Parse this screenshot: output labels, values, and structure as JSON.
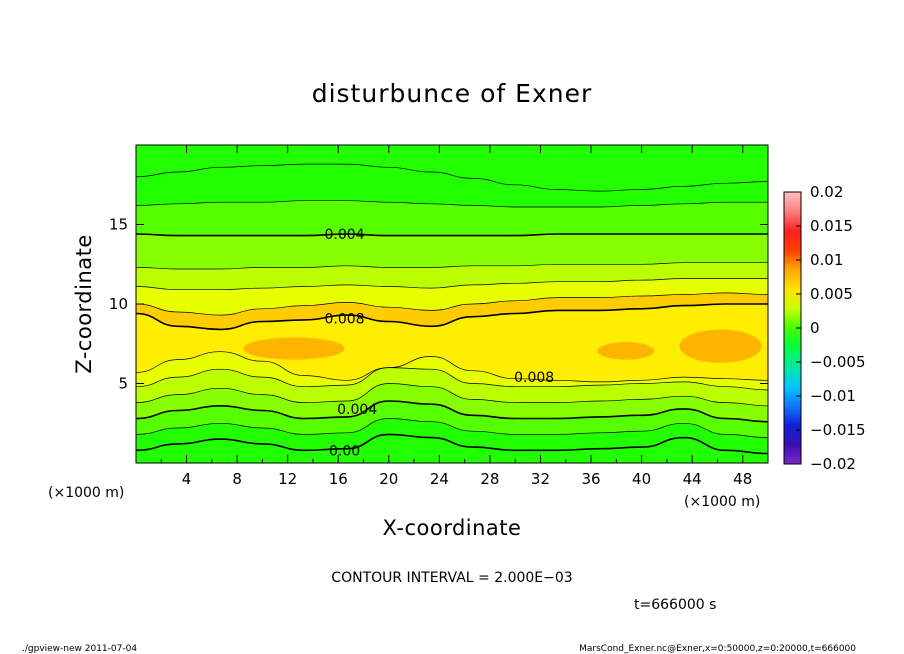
{
  "chart_data": {
    "type": "heatmap",
    "title": "disturbunce of Exner",
    "xlabel": "X-coordinate",
    "ylabel": "Z-coordinate",
    "x_units": "(×1000 m)",
    "y_units": "(×1000 m)",
    "xlim": [
      0,
      50
    ],
    "ylim": [
      0,
      20
    ],
    "x_ticks": [
      4,
      8,
      12,
      16,
      20,
      24,
      28,
      32,
      36,
      40,
      44,
      48
    ],
    "y_ticks": [
      5,
      10,
      15
    ],
    "colorbar": {
      "ticks": [
        "0.02",
        "0.015",
        "0.01",
        "0.005",
        "0",
        "−0.005",
        "−0.01",
        "−0.015",
        "−0.02"
      ],
      "range": [
        -0.02,
        0.02
      ]
    },
    "contour_interval_text": "CONTOUR INTERVAL = 2.000E−03",
    "contour_labels": [
      {
        "text": "0.004",
        "x": 16.5,
        "z": 14.4
      },
      {
        "text": "0.008",
        "x": 16.5,
        "z": 9.1
      },
      {
        "text": "0.008",
        "x": 31.5,
        "z": 5.4
      },
      {
        "text": "0.004",
        "x": 17.5,
        "z": 3.4
      },
      {
        "text": "0.00",
        "x": 16.5,
        "z": 0.8
      }
    ],
    "band_profiles": [
      {
        "value": 0.002,
        "z": [
          0.8,
          1.2,
          1.5,
          1.2,
          0.8,
          0.9,
          1.8,
          1.6,
          1.0,
          0.8,
          0.8,
          0.9,
          1.0,
          1.6,
          0.8,
          0.6
        ]
      },
      {
        "value": 0.003,
        "z": [
          1.8,
          2.2,
          2.5,
          2.2,
          1.8,
          1.9,
          2.8,
          2.6,
          2.0,
          1.8,
          1.8,
          1.9,
          2.0,
          2.5,
          1.8,
          1.6
        ]
      },
      {
        "value": 0.004,
        "z": [
          2.8,
          3.3,
          3.6,
          3.3,
          2.8,
          2.9,
          3.9,
          3.7,
          3.0,
          2.8,
          2.8,
          2.9,
          3.0,
          3.4,
          2.8,
          2.6
        ]
      },
      {
        "value": 0.005,
        "z": [
          3.8,
          4.3,
          4.7,
          4.3,
          3.8,
          3.9,
          5.0,
          4.8,
          4.0,
          3.8,
          3.8,
          3.9,
          4.0,
          4.2,
          3.8,
          3.6
        ]
      },
      {
        "value": 0.006,
        "z": [
          4.8,
          5.4,
          5.9,
          5.4,
          4.8,
          4.9,
          6.0,
          5.9,
          5.0,
          4.8,
          4.8,
          4.9,
          5.0,
          5.1,
          4.8,
          4.6
        ]
      },
      {
        "value": 0.007,
        "z": [
          5.7,
          6.5,
          7.0,
          6.4,
          5.5,
          5.2,
          6.0,
          6.7,
          5.8,
          5.3,
          5.2,
          5.1,
          5.2,
          5.4,
          5.3,
          5.2
        ]
      },
      {
        "value": 0.0085,
        "z": [
          9.4,
          8.6,
          8.4,
          8.9,
          9.0,
          9.3,
          8.9,
          8.6,
          9.2,
          9.4,
          9.6,
          9.6,
          9.7,
          9.9,
          10.0,
          10.0
        ]
      },
      {
        "value": 0.007,
        "z": [
          10.0,
          9.5,
          9.3,
          9.7,
          9.9,
          10.1,
          9.8,
          9.6,
          10.0,
          10.2,
          10.4,
          10.4,
          10.5,
          10.6,
          10.7,
          10.6
        ]
      },
      {
        "value": 0.006,
        "z": [
          11.1,
          10.9,
          10.9,
          11.0,
          11.1,
          11.2,
          11.1,
          11.0,
          11.2,
          11.3,
          11.4,
          11.4,
          11.5,
          11.6,
          11.6,
          11.6
        ]
      },
      {
        "value": 0.005,
        "z": [
          12.3,
          12.2,
          12.2,
          12.3,
          12.3,
          12.4,
          12.3,
          12.3,
          12.4,
          12.4,
          12.5,
          12.5,
          12.5,
          12.6,
          12.6,
          12.6
        ]
      },
      {
        "value": 0.004,
        "z": [
          14.4,
          14.3,
          14.3,
          14.3,
          14.3,
          14.4,
          14.3,
          14.3,
          14.3,
          14.3,
          14.4,
          14.4,
          14.4,
          14.4,
          14.4,
          14.4
        ]
      },
      {
        "value": 0.003,
        "z": [
          16.2,
          16.3,
          16.4,
          16.4,
          16.5,
          16.5,
          16.4,
          16.3,
          16.2,
          16.1,
          16.1,
          16.1,
          16.2,
          16.3,
          16.4,
          16.4
        ]
      },
      {
        "value": 0.002,
        "z": [
          18.0,
          18.3,
          18.6,
          18.7,
          18.8,
          18.8,
          18.6,
          18.3,
          17.9,
          17.5,
          17.2,
          17.1,
          17.2,
          17.4,
          17.6,
          17.7
        ]
      }
    ],
    "highlight_regions": [
      {
        "value": 0.009,
        "x": [
          8.5,
          16.5
        ],
        "z": [
          6.5,
          7.9
        ]
      },
      {
        "value": 0.009,
        "x": [
          36.5,
          41.0
        ],
        "z": [
          6.5,
          7.6
        ]
      },
      {
        "value": 0.009,
        "x": [
          43.0,
          49.5
        ],
        "z": [
          6.3,
          8.4
        ]
      }
    ]
  },
  "footer": {
    "time": "t=666000 s",
    "program": "./gpview-new   2011-07-04",
    "source": "MarsCond_Exner.nc@Exner,x=0:50000,z=0:20000,t=666000"
  },
  "colors": {
    "c_0_002": "#22ff00",
    "c_0_003": "#55ff00",
    "c_0_004": "#88ff00",
    "c_0_005": "#bbff00",
    "c_0_006": "#e8ff00",
    "c_0_007": "#ffee00",
    "c_0_008": "#ffcc00",
    "c_0_009": "#ffb400",
    "colorbar_stops": [
      "#7a28c8",
      "#3a10b0",
      "#1020d8",
      "#1078ff",
      "#00c8ff",
      "#00e8a0",
      "#00ff40",
      "#44ff00",
      "#c8ff00",
      "#ffe000",
      "#ffa800",
      "#ff4000",
      "#ff2020",
      "#ff8080",
      "#ffc0c0"
    ]
  }
}
